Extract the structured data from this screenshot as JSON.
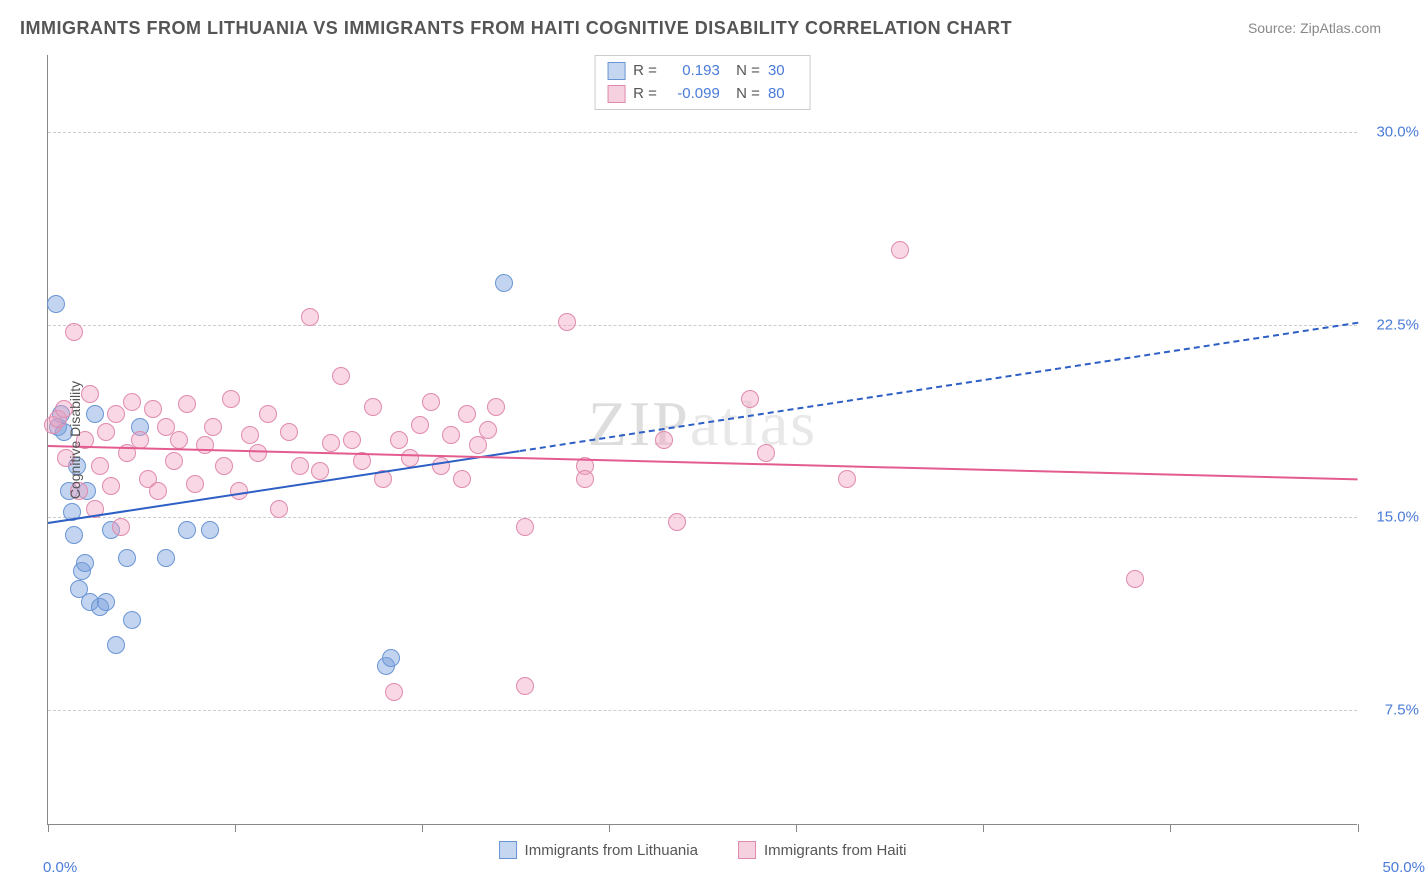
{
  "title": "IMMIGRANTS FROM LITHUANIA VS IMMIGRANTS FROM HAITI COGNITIVE DISABILITY CORRELATION CHART",
  "source": "Source: ZipAtlas.com",
  "watermark": "ZIPatlas",
  "y_axis_title": "Cognitive Disability",
  "x_axis": {
    "min": 0,
    "max": 50,
    "label_min": "0.0%",
    "label_max": "50.0%",
    "ticks": [
      0,
      7.14,
      14.28,
      21.42,
      28.56,
      35.7,
      42.84,
      50
    ]
  },
  "y_axis": {
    "min": 3,
    "max": 33,
    "gridlines": [
      7.5,
      15.0,
      22.5,
      30.0
    ],
    "labels": [
      "7.5%",
      "15.0%",
      "22.5%",
      "30.0%"
    ]
  },
  "series": [
    {
      "name": "Immigrants from Lithuania",
      "color_fill": "rgba(120,160,220,0.45)",
      "color_stroke": "#6a95d4",
      "line_color": "#2d5fc4",
      "swatch_fill": "#c5d7f0",
      "swatch_border": "#6a95d4",
      "R": "0.193",
      "N": "30",
      "marker_radius": 9,
      "trend": {
        "x1": 0,
        "y1": 14.8,
        "x2_solid": 18,
        "y2_solid": 17.6,
        "x2_dash": 50,
        "y2_dash": 22.6
      },
      "points": [
        [
          0.3,
          23.3
        ],
        [
          0.4,
          18.5
        ],
        [
          0.5,
          19.0
        ],
        [
          0.6,
          18.3
        ],
        [
          0.8,
          16.0
        ],
        [
          0.9,
          15.2
        ],
        [
          1.0,
          14.3
        ],
        [
          1.1,
          17.0
        ],
        [
          1.2,
          12.2
        ],
        [
          1.3,
          12.9
        ],
        [
          1.4,
          13.2
        ],
        [
          1.5,
          16.0
        ],
        [
          1.6,
          11.7
        ],
        [
          1.8,
          19.0
        ],
        [
          2.0,
          11.5
        ],
        [
          2.2,
          11.7
        ],
        [
          2.4,
          14.5
        ],
        [
          2.6,
          10.0
        ],
        [
          3.0,
          13.4
        ],
        [
          3.2,
          11.0
        ],
        [
          3.5,
          18.5
        ],
        [
          4.5,
          13.4
        ],
        [
          5.3,
          14.5
        ],
        [
          6.2,
          14.5
        ],
        [
          12.9,
          9.2
        ],
        [
          13.1,
          9.5
        ],
        [
          17.4,
          24.1
        ]
      ]
    },
    {
      "name": "Immigrants from Haiti",
      "color_fill": "rgba(240,160,190,0.42)",
      "color_stroke": "#e08aae",
      "line_color": "#e35b8f",
      "swatch_fill": "#f5d0de",
      "swatch_border": "#e08aae",
      "R": "-0.099",
      "N": "80",
      "marker_radius": 9,
      "trend": {
        "x1": 0,
        "y1": 17.8,
        "x2_solid": 50,
        "y2_solid": 16.5
      },
      "points": [
        [
          0.2,
          18.6
        ],
        [
          0.4,
          18.8
        ],
        [
          0.6,
          19.2
        ],
        [
          0.7,
          17.3
        ],
        [
          1.0,
          22.2
        ],
        [
          1.2,
          16.0
        ],
        [
          1.4,
          18.0
        ],
        [
          1.6,
          19.8
        ],
        [
          1.8,
          15.3
        ],
        [
          2.0,
          17.0
        ],
        [
          2.2,
          18.3
        ],
        [
          2.4,
          16.2
        ],
        [
          2.6,
          19.0
        ],
        [
          2.8,
          14.6
        ],
        [
          3.0,
          17.5
        ],
        [
          3.2,
          19.5
        ],
        [
          3.5,
          18.0
        ],
        [
          3.8,
          16.5
        ],
        [
          4.0,
          19.2
        ],
        [
          4.2,
          16.0
        ],
        [
          4.5,
          18.5
        ],
        [
          4.8,
          17.2
        ],
        [
          5.0,
          18.0
        ],
        [
          5.3,
          19.4
        ],
        [
          5.6,
          16.3
        ],
        [
          6.0,
          17.8
        ],
        [
          6.3,
          18.5
        ],
        [
          6.7,
          17.0
        ],
        [
          7.0,
          19.6
        ],
        [
          7.3,
          16.0
        ],
        [
          7.7,
          18.2
        ],
        [
          8.0,
          17.5
        ],
        [
          8.4,
          19.0
        ],
        [
          8.8,
          15.3
        ],
        [
          9.2,
          18.3
        ],
        [
          9.6,
          17.0
        ],
        [
          10.0,
          22.8
        ],
        [
          10.4,
          16.8
        ],
        [
          10.8,
          17.9
        ],
        [
          11.2,
          20.5
        ],
        [
          11.6,
          18.0
        ],
        [
          12.0,
          17.2
        ],
        [
          12.4,
          19.3
        ],
        [
          12.8,
          16.5
        ],
        [
          13.2,
          8.2
        ],
        [
          13.4,
          18.0
        ],
        [
          13.8,
          17.3
        ],
        [
          14.2,
          18.6
        ],
        [
          14.6,
          19.5
        ],
        [
          15.0,
          17.0
        ],
        [
          15.4,
          18.2
        ],
        [
          15.8,
          16.5
        ],
        [
          16.0,
          19.0
        ],
        [
          16.4,
          17.8
        ],
        [
          16.8,
          18.4
        ],
        [
          17.1,
          19.3
        ],
        [
          18.2,
          14.6
        ],
        [
          18.2,
          8.4
        ],
        [
          19.8,
          22.6
        ],
        [
          20.5,
          17.0
        ],
        [
          20.5,
          16.5
        ],
        [
          23.5,
          18.0
        ],
        [
          24.0,
          14.8
        ],
        [
          26.8,
          19.6
        ],
        [
          27.4,
          17.5
        ],
        [
          30.5,
          16.5
        ],
        [
          32.5,
          25.4
        ],
        [
          41.5,
          12.6
        ]
      ]
    }
  ],
  "bottom_legend": [
    {
      "label": "Immigrants from Lithuania",
      "fill": "#c5d7f0",
      "border": "#6a95d4"
    },
    {
      "label": "Immigrants from Haiti",
      "fill": "#f5d0de",
      "border": "#e08aae"
    }
  ]
}
